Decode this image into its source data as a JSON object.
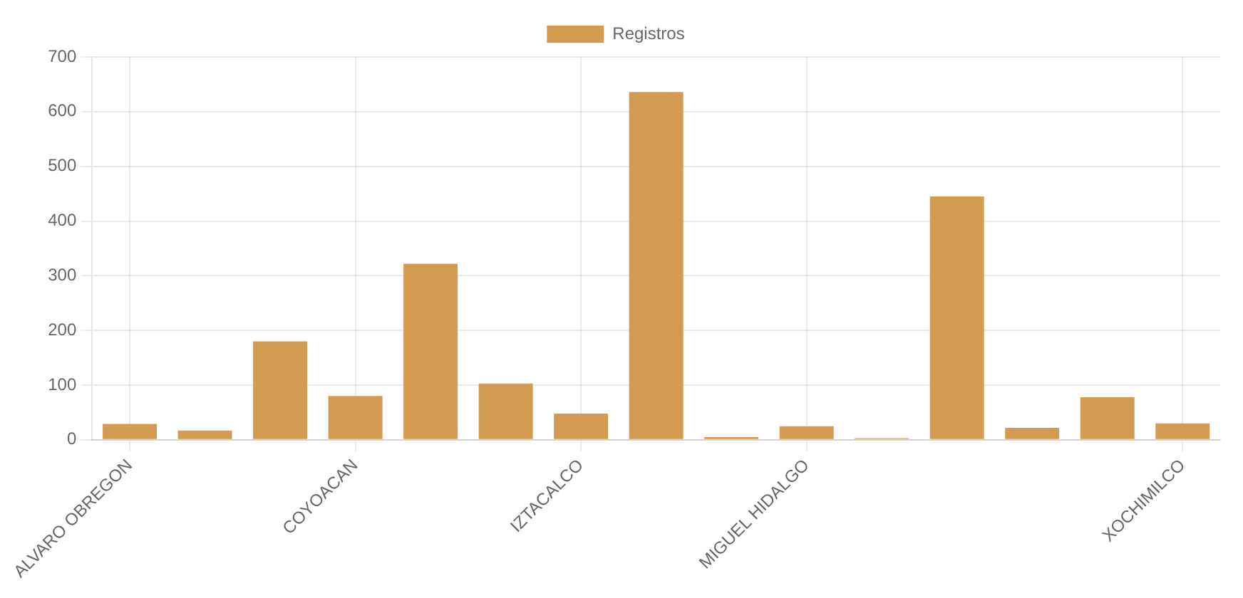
{
  "chart_data": {
    "type": "bar",
    "categories": [
      "ALVARO OBREGON",
      null,
      null,
      "COYOACAN",
      null,
      null,
      "IZTACALCO",
      null,
      null,
      "MIGUEL HIDALGO",
      null,
      null,
      null,
      null,
      "XOCHIMILCO"
    ],
    "series": [
      {
        "name": "Registros",
        "color": "#d39b52",
        "values": [
          29,
          17,
          180,
          80,
          322,
          103,
          48,
          636,
          5,
          25,
          3,
          445,
          22,
          78,
          30
        ]
      }
    ],
    "ylim": [
      0,
      700
    ],
    "yticks": [
      0,
      100,
      200,
      300,
      400,
      500,
      600,
      700
    ],
    "grid": true,
    "legend": "top"
  }
}
